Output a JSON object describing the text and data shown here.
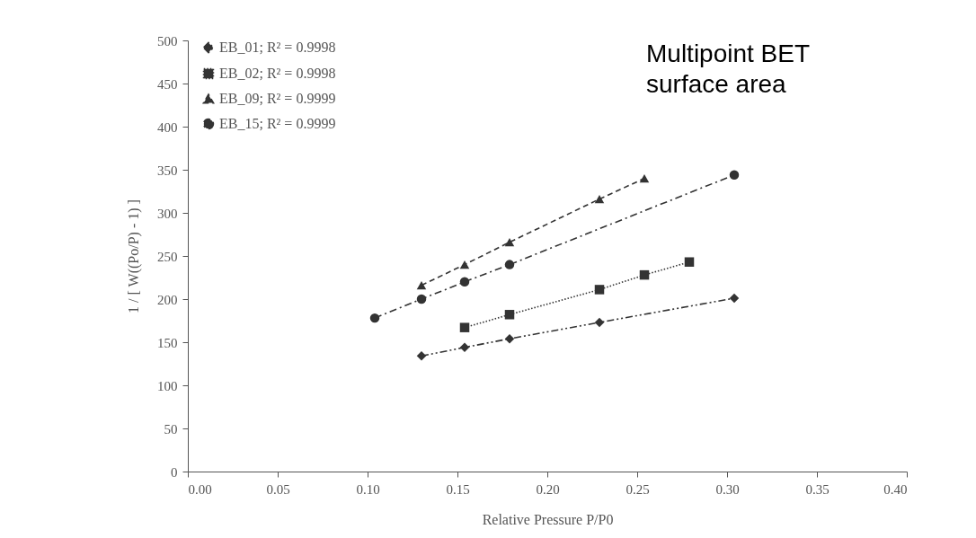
{
  "chart_data": {
    "type": "line",
    "title": "Multipoint BET surface area",
    "xlabel": "Relative Pressure P/P0",
    "ylabel": "1 / [ W((Po/P) - 1) ]",
    "xlim": [
      0,
      0.4
    ],
    "ylim": [
      0,
      500
    ],
    "xticks": [
      {
        "value": 0,
        "label": "0.00"
      },
      {
        "value": 0.05,
        "label": "0.05"
      },
      {
        "value": 0.1,
        "label": "0.10"
      },
      {
        "value": 0.15,
        "label": "0.15"
      },
      {
        "value": 0.2,
        "label": "0.20"
      },
      {
        "value": 0.25,
        "label": "0.25"
      },
      {
        "value": 0.3,
        "label": "0.30"
      },
      {
        "value": 0.35,
        "label": "0.35"
      },
      {
        "value": 0.4,
        "label": "0.40"
      }
    ],
    "yticks": [
      0,
      50,
      100,
      150,
      200,
      250,
      300,
      350,
      400,
      450,
      500
    ],
    "grid": false,
    "legend": "top left",
    "series": [
      {
        "name": "EB_01; R² = 0.9998",
        "color": "#333333",
        "marker": "diamond",
        "line_style": "dashdotdot",
        "x": [
          0.13,
          0.154,
          0.179,
          0.229,
          0.304
        ],
        "values": [
          134,
          144,
          154,
          173,
          201
        ]
      },
      {
        "name": "EB_02; R² = 0.9998",
        "color": "#333333",
        "marker": "square",
        "line_style": "dotted",
        "x": [
          0.154,
          0.179,
          0.229,
          0.254,
          0.279
        ],
        "values": [
          167,
          182,
          211,
          228,
          243
        ]
      },
      {
        "name": "EB_09; R² = 0.9999",
        "color": "#333333",
        "marker": "triangle",
        "line_style": "dashed",
        "x": [
          0.13,
          0.154,
          0.179,
          0.229,
          0.254
        ],
        "values": [
          216,
          240,
          266,
          316,
          340
        ]
      },
      {
        "name": "EB_15; R² = 0.9999",
        "color": "#333333",
        "marker": "circle",
        "line_style": "dashdot",
        "x": [
          0.104,
          0.13,
          0.154,
          0.179,
          0.304
        ],
        "values": [
          178,
          200,
          220,
          240,
          344
        ]
      }
    ]
  }
}
